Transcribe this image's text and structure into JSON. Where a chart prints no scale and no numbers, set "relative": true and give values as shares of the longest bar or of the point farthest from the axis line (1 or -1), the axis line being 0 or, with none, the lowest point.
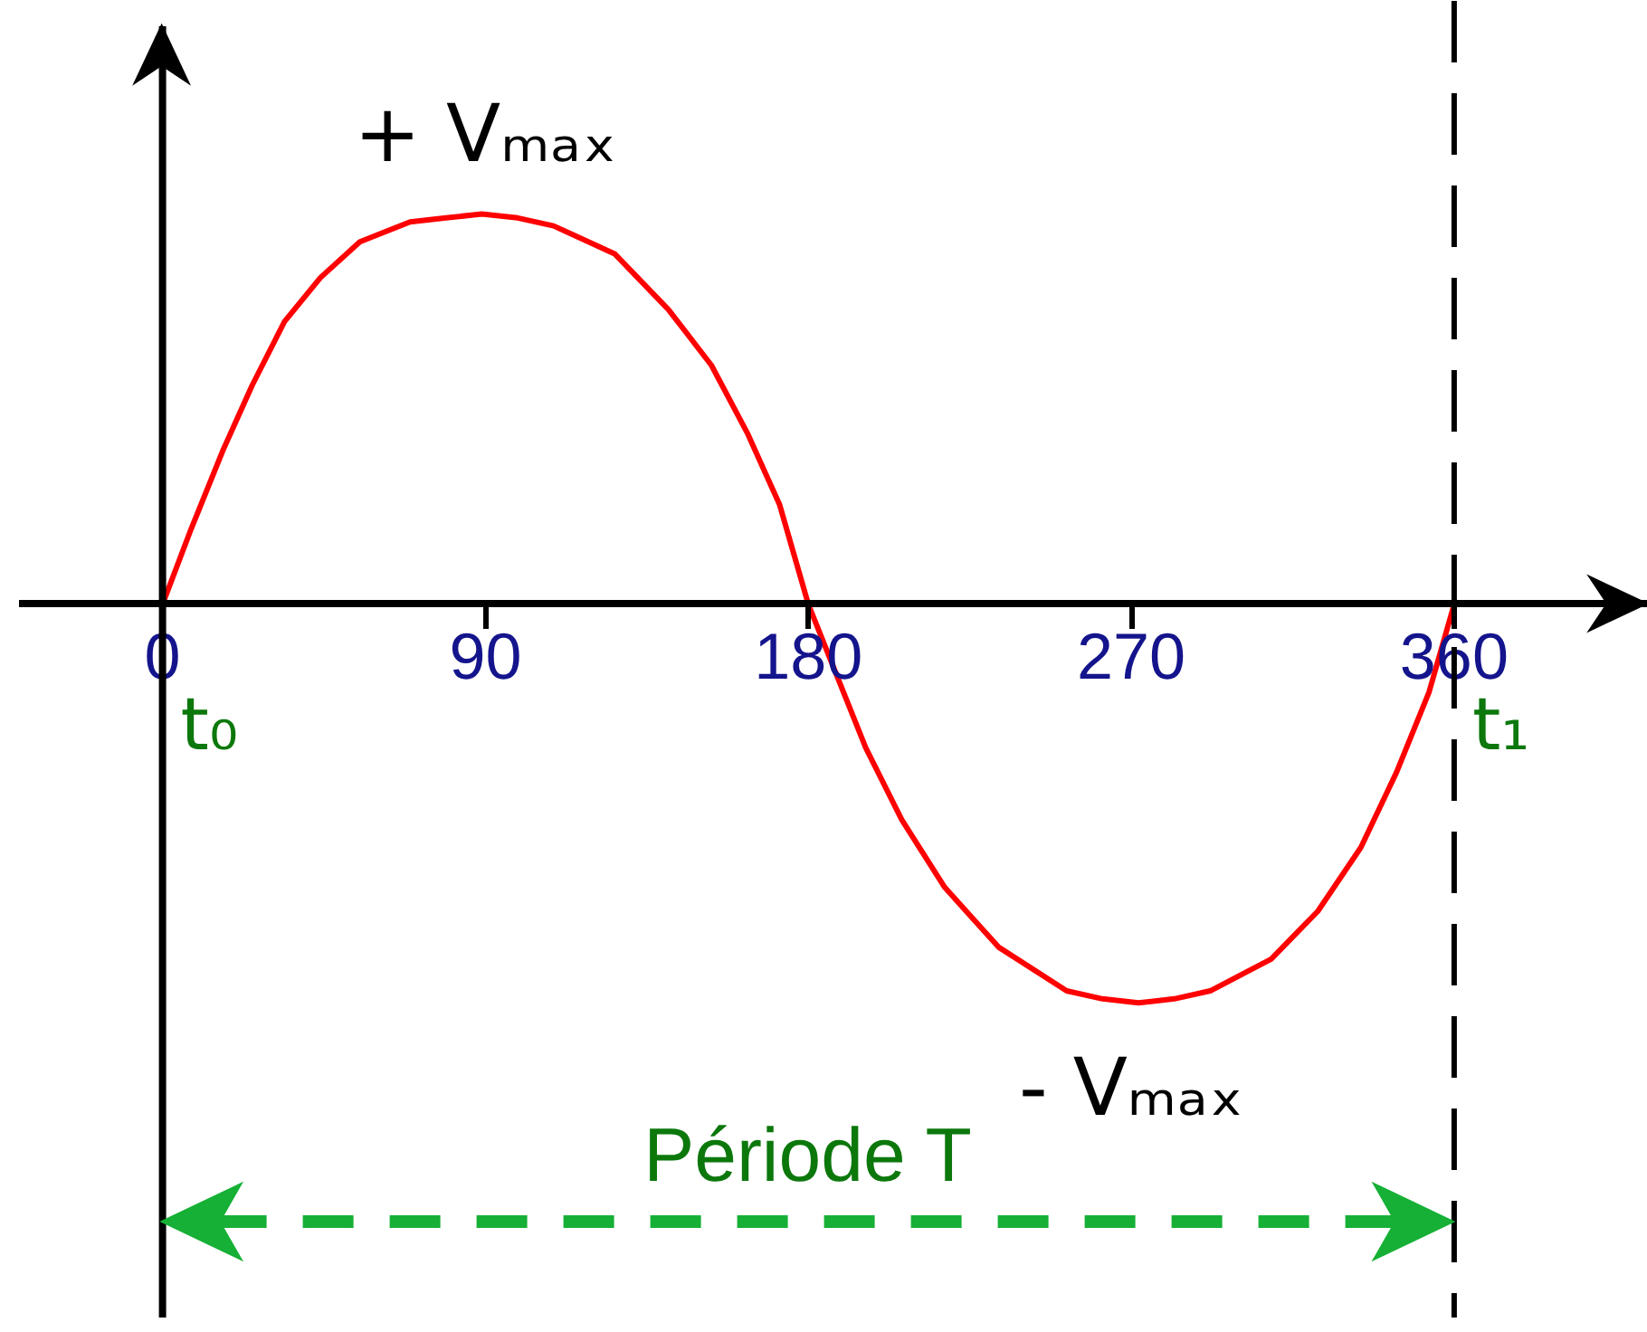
{
  "chart_data": {
    "type": "line",
    "relative": true,
    "x": [
      0,
      8,
      17,
      25,
      34,
      44,
      55,
      69,
      79,
      89,
      99,
      109,
      126,
      141,
      153,
      163,
      172,
      180,
      188,
      196,
      206,
      218,
      233,
      252,
      262,
      272,
      282,
      292,
      309,
      322,
      334,
      344,
      353,
      360
    ],
    "series": [
      {
        "color": "#ff0000",
        "values": [
          0,
          0.19,
          0.39,
          0.55,
          0.71,
          0.82,
          0.91,
          0.96,
          0.97,
          0.98,
          0.97,
          0.95,
          0.88,
          0.74,
          0.6,
          0.43,
          0.25,
          0,
          -0.18,
          -0.36,
          -0.54,
          -0.71,
          -0.86,
          -0.97,
          -0.99,
          -1,
          -0.99,
          -0.97,
          -0.89,
          -0.77,
          -0.61,
          -0.42,
          -0.22,
          0
        ]
      }
    ],
    "xlim": [
      -40,
      414
    ],
    "xticks": [
      0,
      90,
      180,
      270,
      360
    ],
    "tick_labels": "x",
    "ref_lines": [
      {
        "axis": "x",
        "value": 360,
        "color": "#000000",
        "line_style": "dashed"
      }
    ],
    "annotations": [
      {
        "text": "+ Vₘₐₓ",
        "x": 90,
        "y": 0.98
      },
      {
        "text": "- Vₘₐₓ",
        "x": 270,
        "y": -1
      },
      {
        "text": "t₀",
        "x": 0,
        "y": 0
      },
      {
        "text": "t₁",
        "x": 360,
        "y": 0
      },
      "Période T"
    ]
  }
}
